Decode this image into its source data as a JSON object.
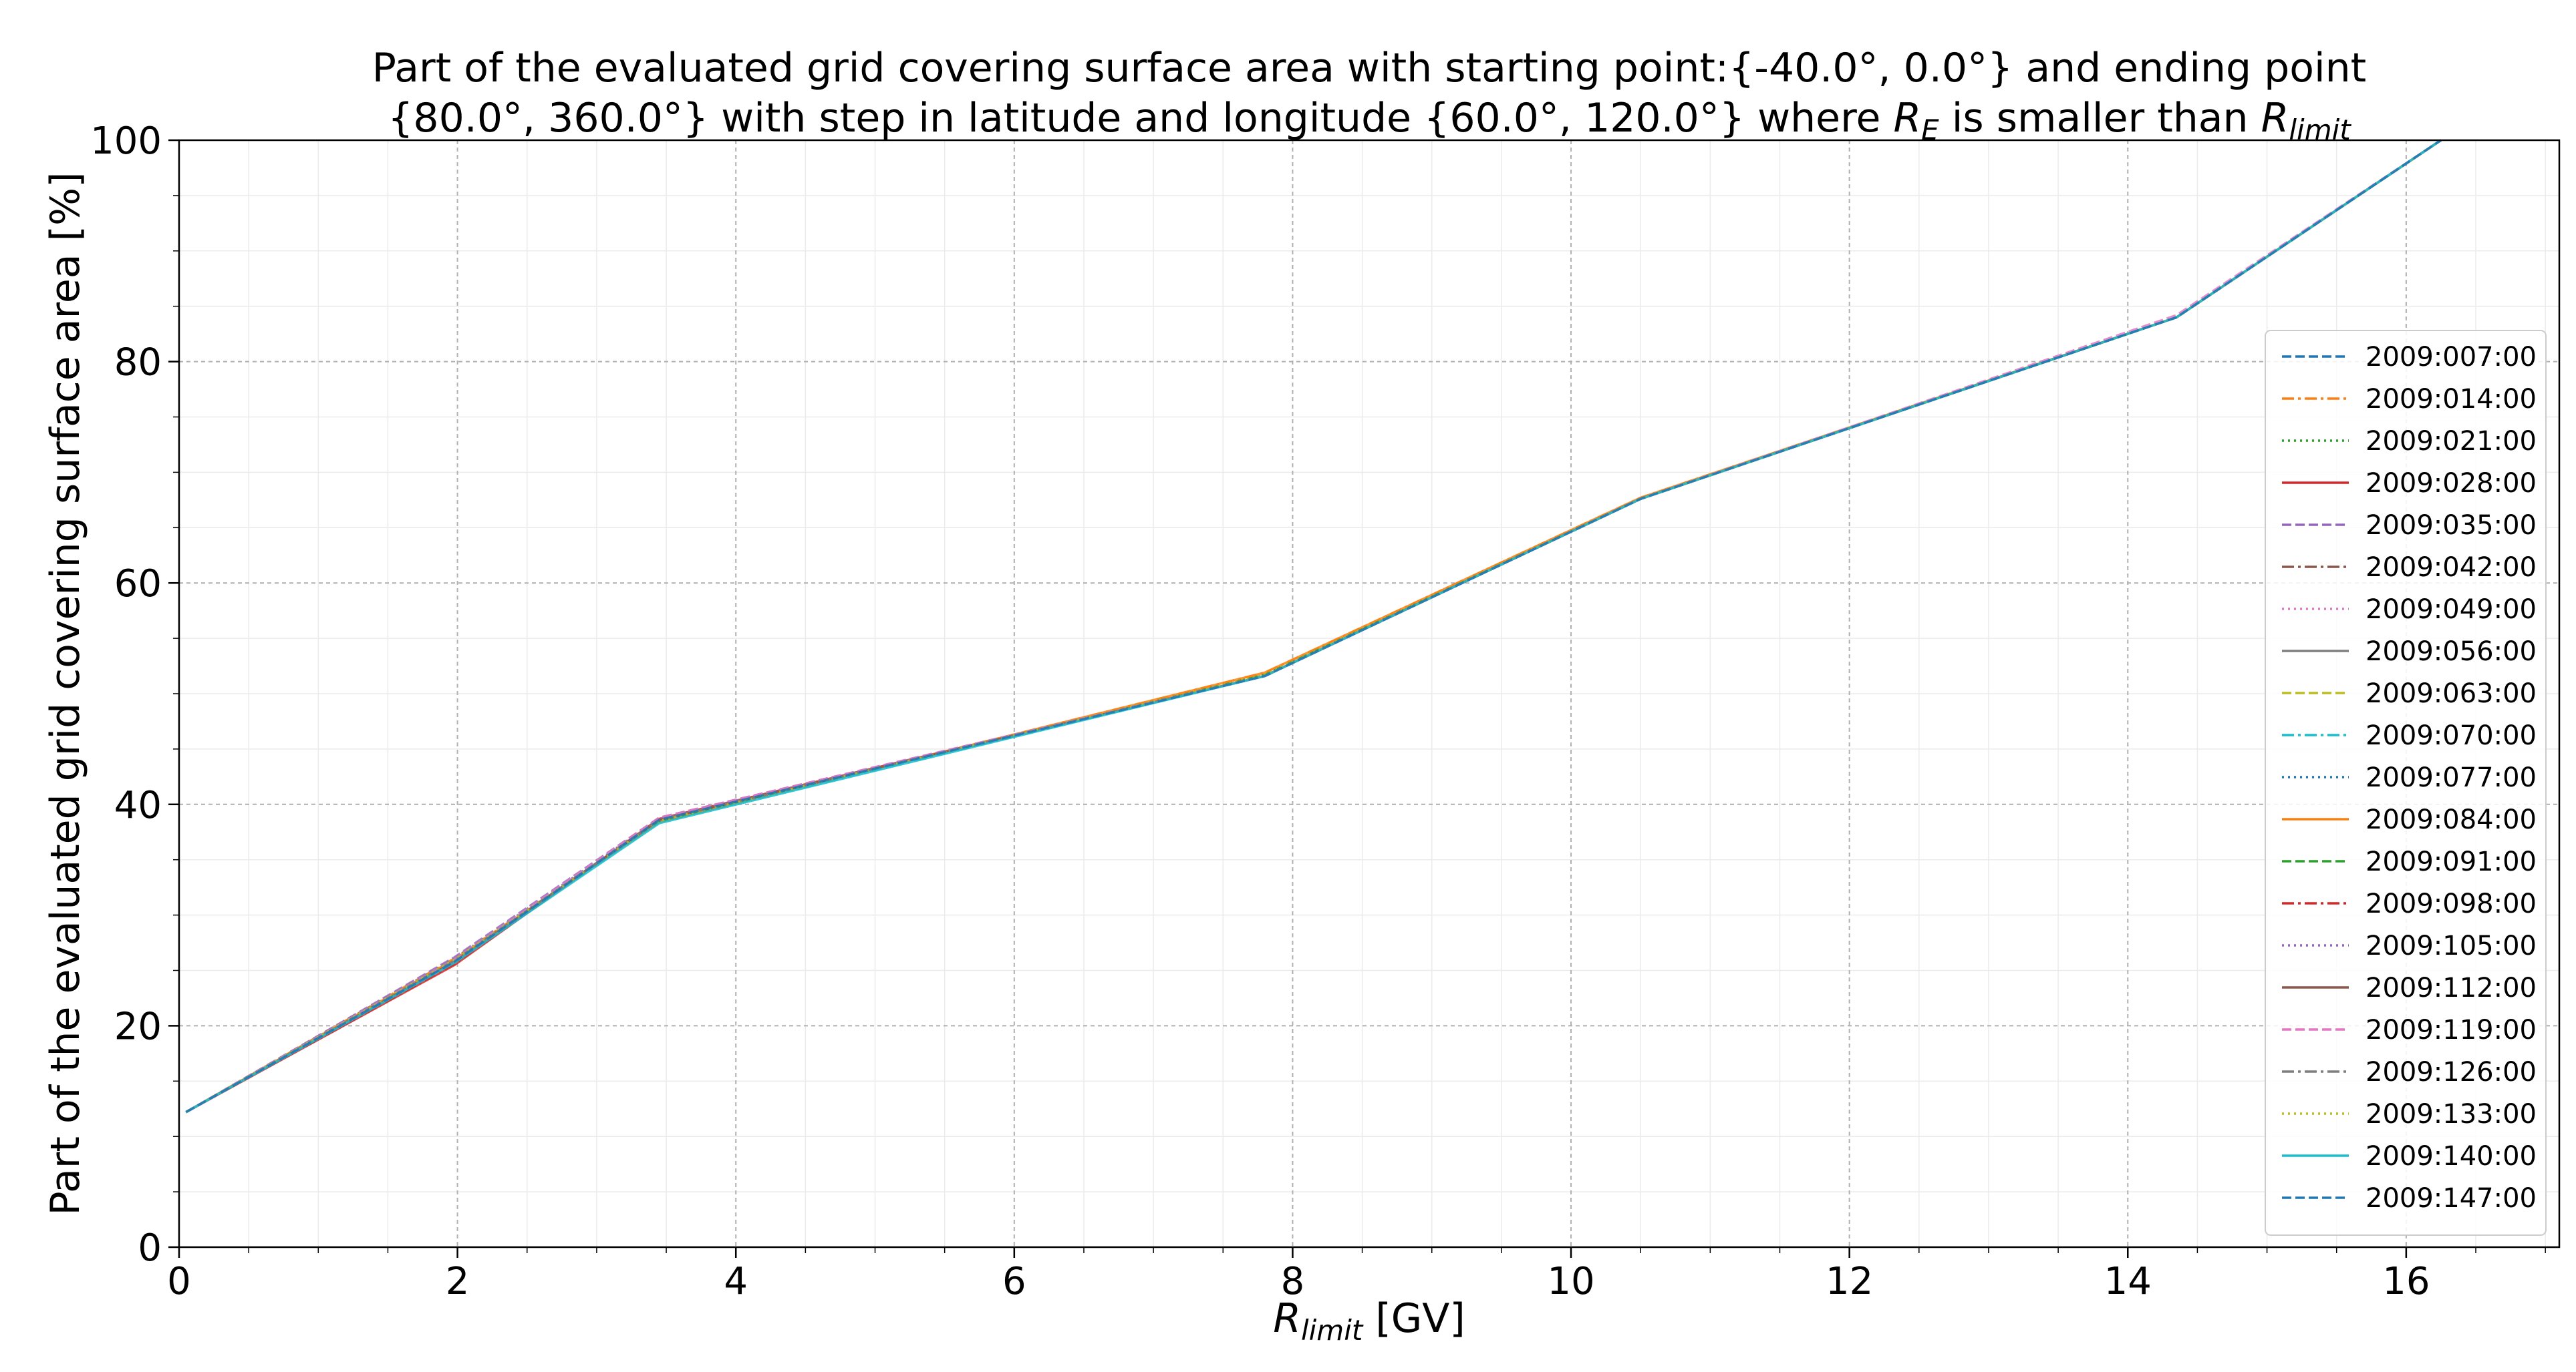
{
  "chart_data": {
    "type": "line",
    "title_line1": "Part of the evaluated grid covering surface area with starting point:{-40.0°, 0.0°} and ending point",
    "title_line2_pre": "{80.0°, 360.0°} with step in latitude and longitude {60.0°, 120.0°} where ",
    "title_r": "R",
    "title_e_sub": "E",
    "title_mid": " is smaller than ",
    "title_limit_sub": "limit",
    "xlabel_r": "R",
    "xlabel_sub": "limit",
    "xlabel_unit": " [GV]",
    "ylabel": "Part of the evaluated grid covering surface area  [%]",
    "xlim": [
      0,
      17.1
    ],
    "ylim": [
      0,
      100
    ],
    "xticks": [
      "0",
      "2",
      "4",
      "6",
      "8",
      "10",
      "12",
      "14",
      "16"
    ],
    "yticks": [
      "0",
      "20",
      "40",
      "60",
      "80",
      "100"
    ],
    "grid": true,
    "legend_position": "right",
    "x": [
      0.05,
      1.98,
      3.45,
      7.8,
      10.5,
      14.35,
      16.25
    ],
    "series": [
      {
        "name": "2009:007:00",
        "color": "#1f77b4",
        "dash": "dashed",
        "values": [
          12.2,
          25.8,
          38.6,
          51.6,
          67.6,
          84.0,
          100
        ]
      },
      {
        "name": "2009:014:00",
        "color": "#ff7f0e",
        "dash": "dashdot",
        "values": [
          12.2,
          26.1,
          38.4,
          51.9,
          67.7,
          84.0,
          100
        ]
      },
      {
        "name": "2009:021:00",
        "color": "#2ca02c",
        "dash": "dotted",
        "values": [
          12.2,
          26.0,
          38.5,
          51.7,
          67.6,
          84.0,
          100
        ]
      },
      {
        "name": "2009:028:00",
        "color": "#d62728",
        "dash": "solid",
        "values": [
          12.2,
          25.5,
          38.7,
          51.6,
          67.6,
          84.0,
          100
        ]
      },
      {
        "name": "2009:035:00",
        "color": "#9467bd",
        "dash": "dashed",
        "values": [
          12.2,
          26.2,
          38.8,
          51.6,
          67.6,
          84.0,
          100
        ]
      },
      {
        "name": "2009:042:00",
        "color": "#8c564b",
        "dash": "dashdot",
        "values": [
          12.2,
          25.8,
          38.6,
          51.6,
          67.6,
          84.0,
          100
        ]
      },
      {
        "name": "2009:049:00",
        "color": "#e377c2",
        "dash": "dotted",
        "values": [
          12.2,
          25.9,
          38.7,
          51.6,
          67.6,
          84.0,
          100
        ]
      },
      {
        "name": "2009:056:00",
        "color": "#7f7f7f",
        "dash": "solid",
        "values": [
          12.2,
          25.9,
          38.6,
          51.6,
          67.6,
          84.0,
          100
        ]
      },
      {
        "name": "2009:063:00",
        "color": "#bcbd22",
        "dash": "dashed",
        "values": [
          12.2,
          26.0,
          38.5,
          51.7,
          67.6,
          84.0,
          100
        ]
      },
      {
        "name": "2009:070:00",
        "color": "#17becf",
        "dash": "dashdot",
        "values": [
          12.2,
          25.8,
          38.4,
          51.6,
          67.6,
          84.0,
          100
        ]
      },
      {
        "name": "2009:077:00",
        "color": "#1f77b4",
        "dash": "dotted",
        "values": [
          12.2,
          25.8,
          38.5,
          51.6,
          67.6,
          84.0,
          100
        ]
      },
      {
        "name": "2009:084:00",
        "color": "#ff7f0e",
        "dash": "solid",
        "values": [
          12.2,
          26.0,
          38.4,
          51.9,
          67.7,
          84.0,
          100
        ]
      },
      {
        "name": "2009:091:00",
        "color": "#2ca02c",
        "dash": "dashed",
        "values": [
          12.2,
          26.0,
          38.5,
          51.7,
          67.6,
          84.0,
          100
        ]
      },
      {
        "name": "2009:098:00",
        "color": "#d62728",
        "dash": "dashdot",
        "values": [
          12.2,
          25.6,
          38.6,
          51.6,
          67.6,
          84.0,
          100
        ]
      },
      {
        "name": "2009:105:00",
        "color": "#9467bd",
        "dash": "dotted",
        "values": [
          12.2,
          26.1,
          38.7,
          51.6,
          67.6,
          84.0,
          100
        ]
      },
      {
        "name": "2009:112:00",
        "color": "#8c564b",
        "dash": "solid",
        "values": [
          12.2,
          25.8,
          38.6,
          51.6,
          67.6,
          84.0,
          100
        ]
      },
      {
        "name": "2009:119:00",
        "color": "#e377c2",
        "dash": "dashed",
        "values": [
          12.2,
          26.0,
          38.8,
          51.6,
          67.6,
          84.2,
          100
        ]
      },
      {
        "name": "2009:126:00",
        "color": "#7f7f7f",
        "dash": "dashdot",
        "values": [
          12.2,
          25.9,
          38.6,
          51.6,
          67.6,
          84.0,
          100
        ]
      },
      {
        "name": "2009:133:00",
        "color": "#bcbd22",
        "dash": "dotted",
        "values": [
          12.2,
          26.0,
          38.5,
          51.7,
          67.6,
          84.0,
          100
        ]
      },
      {
        "name": "2009:140:00",
        "color": "#17becf",
        "dash": "solid",
        "values": [
          12.2,
          25.7,
          38.3,
          51.6,
          67.6,
          84.0,
          100
        ]
      },
      {
        "name": "2009:147:00",
        "color": "#1f77b4",
        "dash": "dashed",
        "values": [
          12.2,
          25.8,
          38.6,
          51.6,
          67.6,
          84.0,
          100
        ]
      }
    ]
  }
}
